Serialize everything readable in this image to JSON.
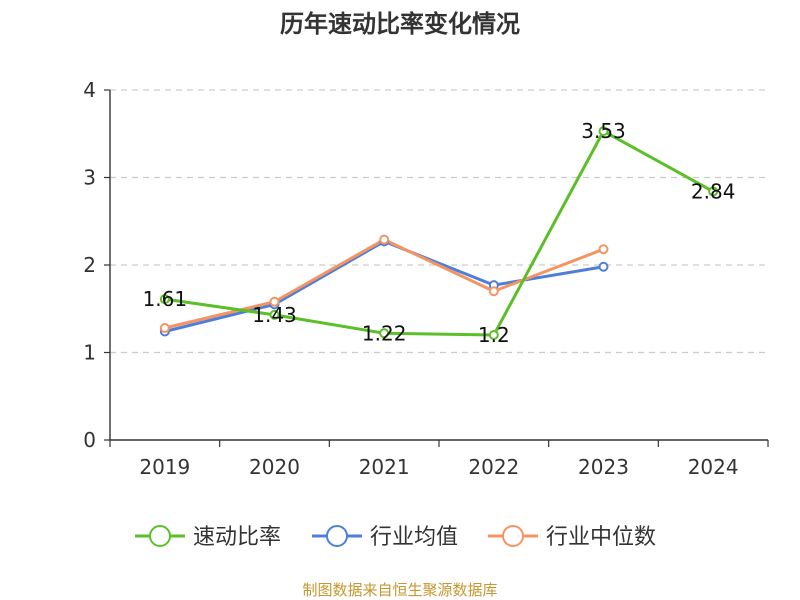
{
  "chart_data": {
    "type": "line",
    "title": "历年速动比率变化情况",
    "categories": [
      "2019",
      "2020",
      "2021",
      "2022",
      "2023",
      "2024"
    ],
    "ylim": [
      0,
      4
    ],
    "yticks": [
      0,
      1,
      2,
      3,
      4
    ],
    "grid": true,
    "legend_position": "bottom",
    "series": [
      {
        "name": "速动比率",
        "color": "#5cbf2a",
        "values": [
          1.61,
          1.43,
          1.22,
          1.2,
          3.53,
          2.84
        ],
        "labels": [
          "1.61",
          "1.43",
          "1.22",
          "1.2",
          "3.53",
          "2.84"
        ]
      },
      {
        "name": "行业均值",
        "color": "#4e7fd8",
        "values": [
          1.24,
          1.55,
          2.27,
          1.77,
          1.98,
          null
        ]
      },
      {
        "name": "行业中位数",
        "color": "#f59463",
        "values": [
          1.28,
          1.58,
          2.29,
          1.7,
          2.18,
          null
        ]
      }
    ]
  },
  "source_text": "制图数据来自恒生聚源数据库"
}
